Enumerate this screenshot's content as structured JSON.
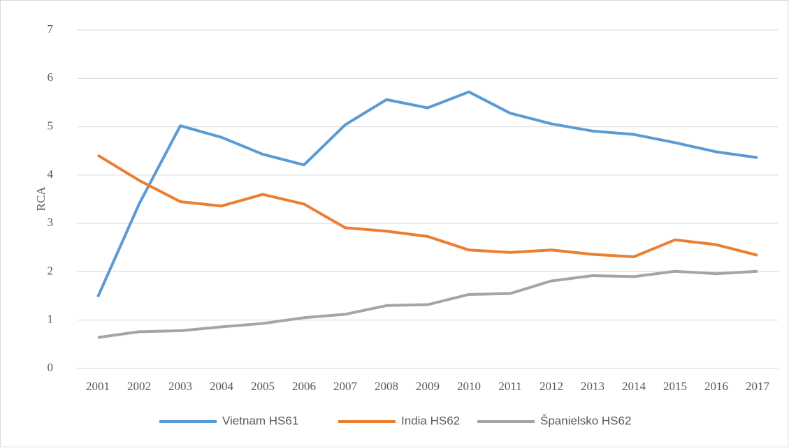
{
  "chart_data": {
    "type": "line",
    "y_label": "RCA",
    "categories": [
      "2001",
      "2002",
      "2003",
      "2004",
      "2005",
      "2006",
      "2007",
      "2008",
      "2009",
      "2010",
      "2011",
      "2012",
      "2013",
      "2014",
      "2015",
      "2016",
      "2017"
    ],
    "series": [
      {
        "name": "Vietnam HS61",
        "color": "#5b9bd5",
        "values": [
          1.48,
          3.4,
          5.02,
          4.78,
          4.43,
          4.21,
          5.04,
          5.56,
          5.39,
          5.72,
          5.28,
          5.06,
          4.91,
          4.84,
          4.67,
          4.48,
          4.36
        ]
      },
      {
        "name": "India HS62",
        "color": "#ed7d31",
        "values": [
          4.41,
          3.89,
          3.45,
          3.36,
          3.6,
          3.4,
          2.91,
          2.84,
          2.73,
          2.45,
          2.4,
          2.45,
          2.36,
          2.31,
          2.66,
          2.56,
          2.34
        ]
      },
      {
        "name": "Španielsko HS62",
        "color": "#a5a5a5",
        "values": [
          0.64,
          0.76,
          0.78,
          0.86,
          0.93,
          1.05,
          1.12,
          1.3,
          1.32,
          1.53,
          1.55,
          1.81,
          1.92,
          1.9,
          2.01,
          1.96,
          2.01
        ]
      }
    ],
    "ylim": [
      0,
      7
    ],
    "yticks": [
      0,
      1,
      2,
      3,
      4,
      5,
      6,
      7
    ],
    "grid": true,
    "legend": "bottom"
  }
}
